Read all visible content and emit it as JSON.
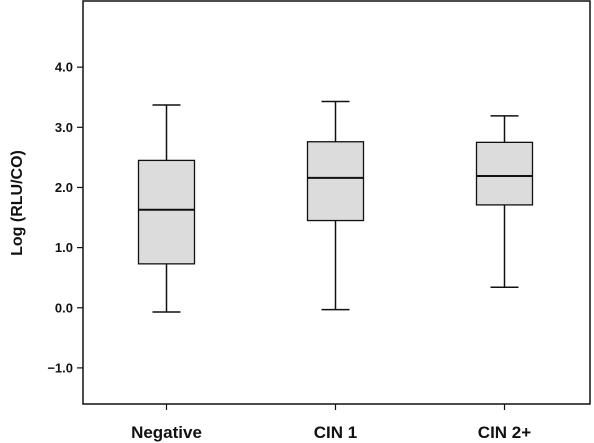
{
  "chart_data": {
    "type": "box",
    "title": "",
    "xlabel": "",
    "ylabel": "Log (RLU/CO)",
    "ylim": [
      -1.6,
      5.1
    ],
    "yticks": [
      4.0,
      3.0,
      2.0,
      1.0,
      0.0,
      -1.0
    ],
    "ytick_labels": [
      "4.0",
      "3.0",
      "2.0",
      "1.0",
      "0.0",
      "−1.0"
    ],
    "categories": [
      "Negative",
      "CIN 1",
      "CIN 2+"
    ],
    "boxes": [
      {
        "min": -0.07,
        "q1": 0.73,
        "median": 1.63,
        "q3": 2.45,
        "max": 3.37
      },
      {
        "min": -0.03,
        "q1": 1.45,
        "median": 2.16,
        "q3": 2.76,
        "max": 3.43
      },
      {
        "min": 0.34,
        "q1": 1.71,
        "median": 2.19,
        "q3": 2.75,
        "max": 3.19
      }
    ],
    "grid": false,
    "box_fill": "#dcdcdc",
    "line_color": "#111111"
  }
}
